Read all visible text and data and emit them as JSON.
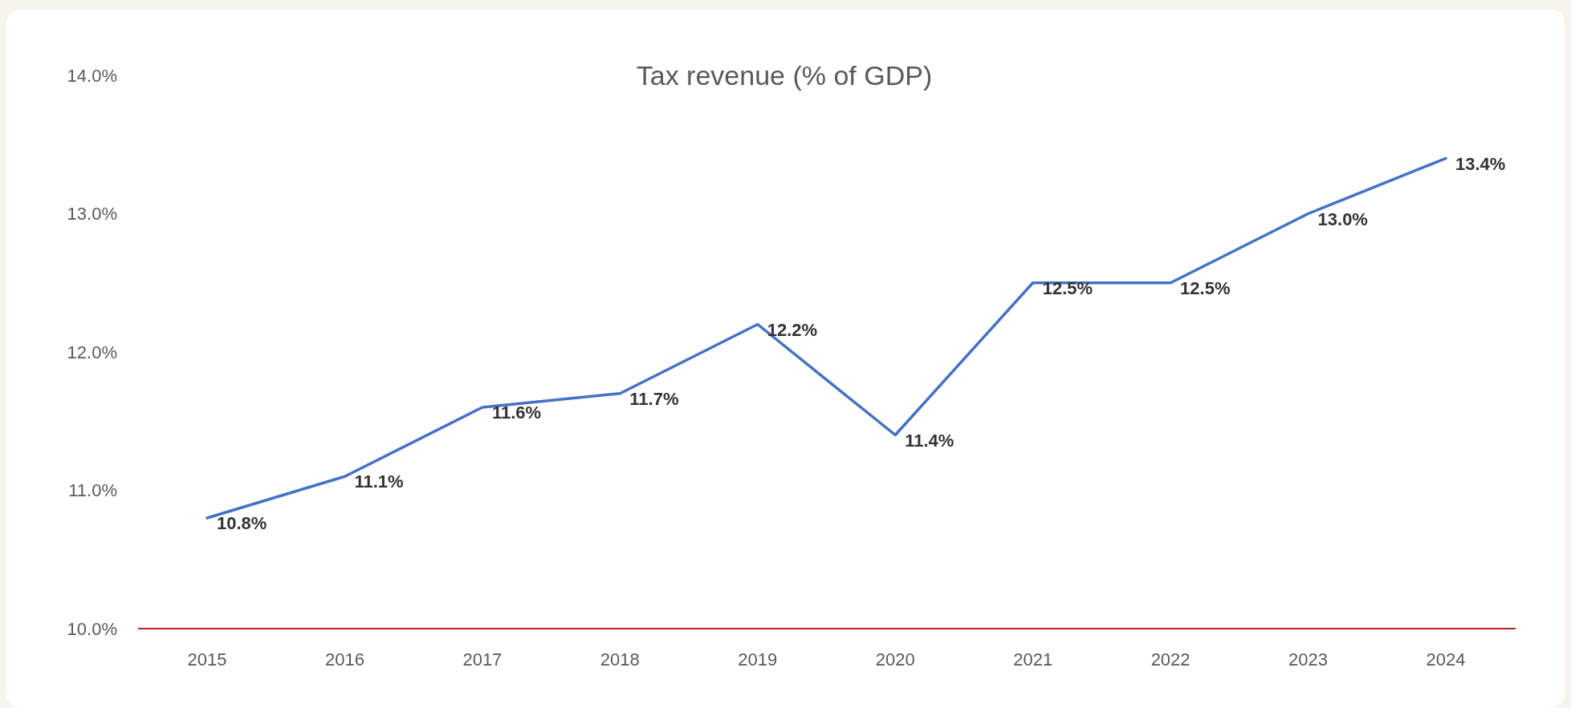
{
  "chart_data": {
    "type": "line",
    "title": "Tax revenue (% of GDP)",
    "categories": [
      "2015",
      "2016",
      "2017",
      "2018",
      "2019",
      "2020",
      "2021",
      "2022",
      "2023",
      "2024"
    ],
    "series": [
      {
        "color": "#4472c4",
        "values": [
          10.8,
          11.1,
          11.6,
          11.7,
          12.2,
          11.4,
          12.5,
          12.5,
          13.0,
          13.4
        ],
        "value_labels": [
          "10.8%",
          "11.1%",
          "11.6%",
          "11.7%",
          "12.2%",
          "11.4%",
          "12.5%",
          "12.5%",
          "13.0%",
          "13.4%"
        ]
      }
    ],
    "ylim": [
      10,
      14
    ],
    "yticks": [
      {
        "value": 10,
        "label": "10.0%"
      },
      {
        "value": 11,
        "label": "11.0%"
      },
      {
        "value": 12,
        "label": "12.0%"
      },
      {
        "value": 13,
        "label": "13.0%"
      },
      {
        "value": 14,
        "label": "14.0%"
      }
    ],
    "marker": "none",
    "line_style": "solid"
  }
}
